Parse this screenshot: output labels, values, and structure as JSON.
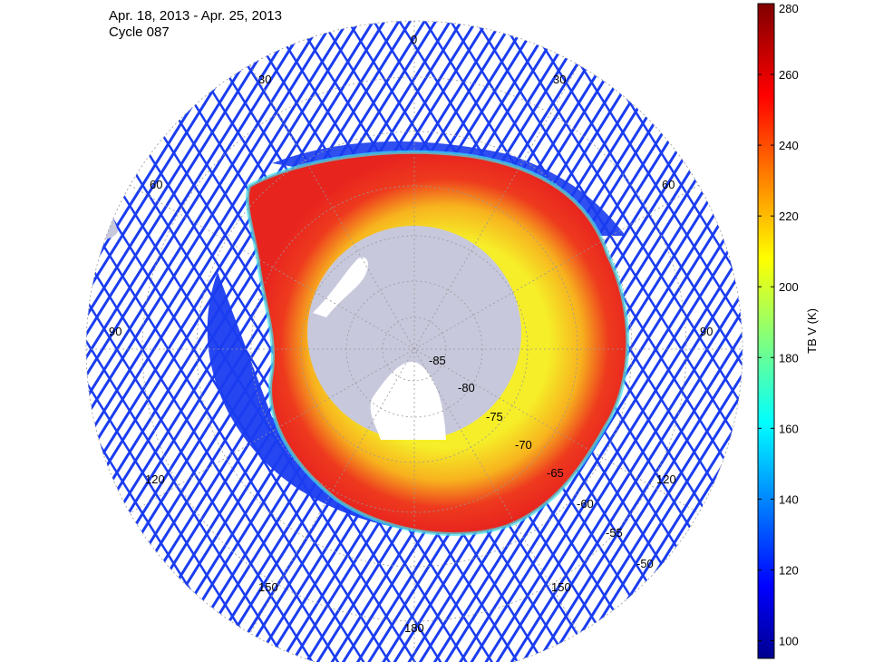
{
  "header": {
    "date_range": "Apr. 18, 2013 - Apr. 25, 2013",
    "cycle": "Cycle 087"
  },
  "map": {
    "projection": "south-polar-stereographic",
    "longitude_labels": [
      "0",
      "30",
      "30",
      "60",
      "60",
      "90",
      "90",
      "120",
      "120",
      "150",
      "150",
      "180"
    ],
    "latitude_labels": [
      "-85",
      "-80",
      "-75",
      "-70",
      "-65",
      "-60",
      "-55",
      "-50"
    ],
    "colors": {
      "land": "#c8c8dc",
      "ice_shelf": "#ffffff",
      "swath": "#1a3cf0",
      "sea_ice_outer": "#e8401c",
      "sea_ice_inner": "#f4d21a",
      "graticule": "#999999"
    }
  },
  "colorbar": {
    "label": "TB V (K)",
    "ticks": [
      "100",
      "120",
      "140",
      "160",
      "180",
      "200",
      "220",
      "240",
      "260",
      "280"
    ],
    "range": [
      95,
      280
    ],
    "colormap": "jet"
  }
}
